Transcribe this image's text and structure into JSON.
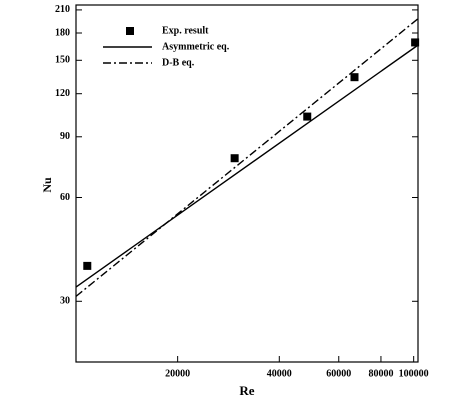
{
  "chart_data": {
    "type": "line",
    "x_label": "Re",
    "y_label": "Nu",
    "x_log": true,
    "y_log": true,
    "xlim": [
      10000,
      103000
    ],
    "ylim": [
      20,
      217
    ],
    "xticks": [
      20000,
      40000,
      60000,
      80000,
      100000
    ],
    "yticks": [
      30,
      60,
      90,
      120,
      150,
      180,
      210
    ],
    "legend": "upper-left",
    "series": [
      {
        "name": "Exp. result",
        "style": "markers",
        "color": "#000000",
        "x": [
          10800,
          29500,
          48400,
          66800,
          101000
        ],
        "values": [
          38,
          78,
          103,
          134,
          169
        ]
      },
      {
        "name": "Asymmetric eq.",
        "style": "solid",
        "color": "#000000",
        "x": [
          10000,
          103000
        ],
        "values": [
          33,
          166
        ]
      },
      {
        "name": "D-B eq.",
        "style": "dashdot",
        "color": "#000000",
        "x": [
          10000,
          103000
        ],
        "values": [
          31,
          198
        ]
      }
    ]
  }
}
